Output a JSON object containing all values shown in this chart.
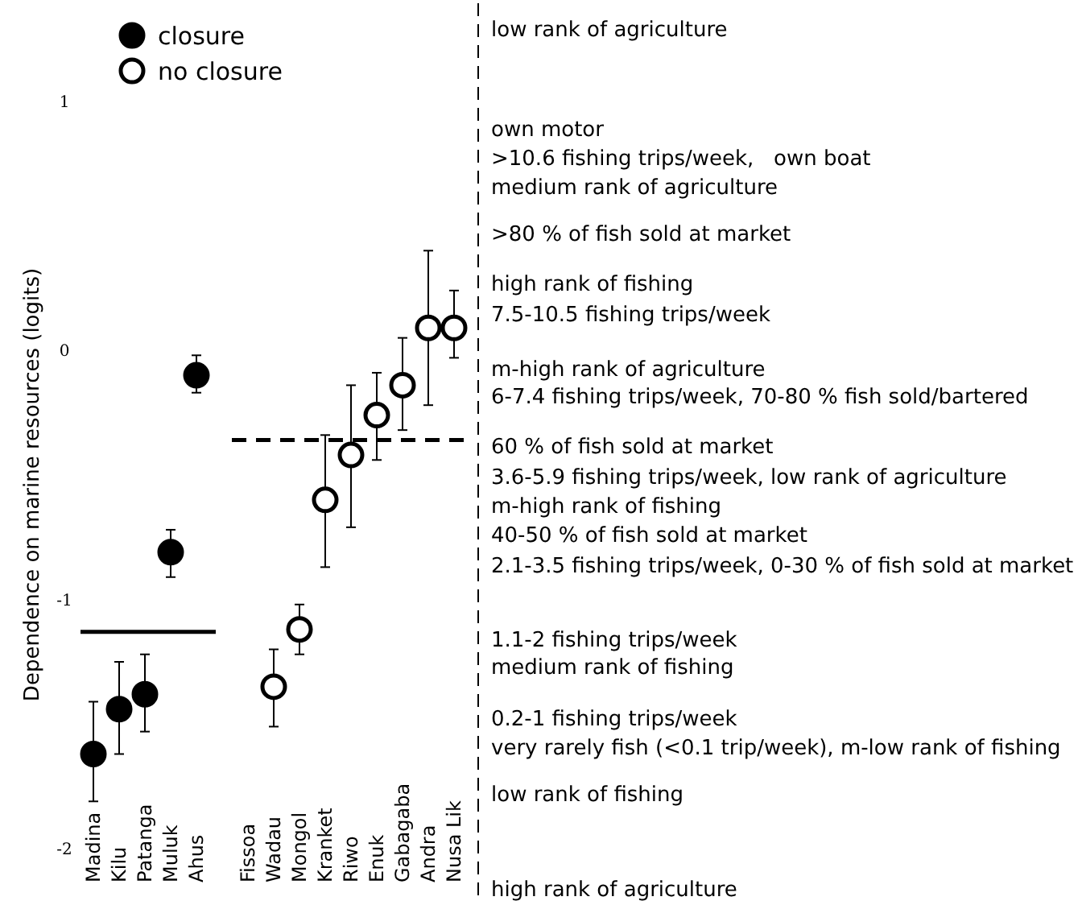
{
  "chart_data": {
    "type": "scatter",
    "ylabel": "Dependence on marine resources (logits)",
    "categories": [
      "Madina",
      "Kilu",
      "Patanga",
      "Muluk",
      "Ahus",
      null,
      "Fissoa",
      "Wadau",
      "Mongol",
      "Kranket",
      "Riwo",
      "Enuk",
      "Gabagaba",
      "Andra",
      "Nusa Lik"
    ],
    "series": [
      {
        "name": "closure",
        "color": "#000000",
        "values": [
          -1.62,
          -1.44,
          -1.38,
          -0.81,
          -0.1,
          null,
          null,
          null,
          null,
          null,
          null,
          null,
          null,
          null,
          null
        ],
        "errors": [
          [
            -1.81,
            -1.41
          ],
          [
            -1.62,
            -1.25
          ],
          [
            -1.53,
            -1.22
          ],
          [
            -0.91,
            -0.72
          ],
          [
            -0.17,
            -0.02
          ],
          null,
          null,
          null,
          null,
          null,
          null,
          null,
          null,
          null,
          null
        ]
      },
      {
        "name": "no closure",
        "color": "#ffffff",
        "values": [
          null,
          null,
          null,
          null,
          null,
          null,
          null,
          -1.35,
          -1.12,
          -0.6,
          -0.42,
          -0.26,
          -0.14,
          0.09,
          0.09
        ],
        "errors": [
          null,
          null,
          null,
          null,
          null,
          null,
          null,
          [
            -1.51,
            -1.2
          ],
          [
            -1.22,
            -1.02
          ],
          [
            -0.87,
            -0.34
          ],
          [
            -0.71,
            -0.14
          ],
          [
            -0.44,
            -0.09
          ],
          [
            -0.32,
            0.05
          ],
          [
            -0.22,
            0.4
          ],
          [
            -0.03,
            0.24
          ]
        ]
      }
    ],
    "ref_lines": [
      {
        "axis": "y",
        "value": -1.13,
        "line_style": "solid"
      },
      {
        "axis": "y",
        "value": -0.36,
        "line_style": "dashed"
      }
    ],
    "ylim": [
      -2.2,
      1.38
    ],
    "yticks": [
      1,
      0,
      -1,
      -2
    ],
    "grid": false,
    "legend": "top left",
    "marker": "circle",
    "annotations": [
      "low rank of agriculture",
      "own motor",
      ">10.6 fishing trips/week,   own boat",
      "medium rank of agriculture",
      ">80 % of fish sold at market",
      "high rank of fishing",
      "7.5-10.5 fishing trips/week",
      "m-high rank of agriculture",
      "6-7.4 fishing trips/week, 70-80 % fish sold/bartered",
      "60 % of fish sold at market",
      "3.6-5.9 fishing trips/week, low rank of agriculture",
      "m-high rank of fishing",
      "40-50 % of fish sold at market",
      "2.1-3.5 fishing trips/week, 0-30 % of fish sold at market",
      "1.1-2 fishing trips/week",
      "medium rank of fishing",
      "0.2-1 fishing trips/week",
      "very rarely fish (<0.1 trip/week), m-low rank of fishing",
      "low rank of fishing",
      "high rank of agriculture"
    ]
  }
}
